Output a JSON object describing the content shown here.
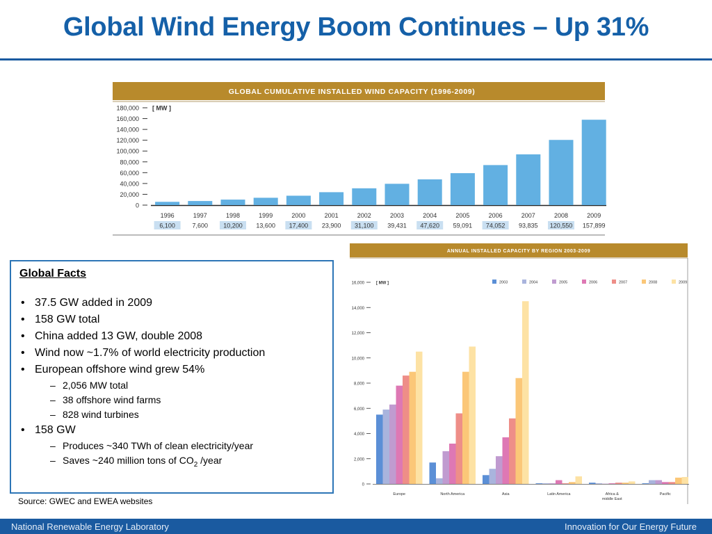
{
  "title": "Global Wind Energy Boom Continues – Up 31%",
  "colors": {
    "title": "#1560a8",
    "band": "#b88a2c",
    "bar": "#62b0e2",
    "highlight": "#c9dff1",
    "footer": "#1a5aa0",
    "box_border": "#2c75b6"
  },
  "facts": {
    "heading": "Global Facts",
    "bullets": [
      {
        "text": "37.5 GW added in 2009",
        "sub": []
      },
      {
        "text": "158 GW total",
        "sub": []
      },
      {
        "text": "China added 13 GW, double 2008",
        "sub": []
      },
      {
        "text": "Wind now ~1.7% of world electricity production",
        "sub": []
      },
      {
        "text": "European offshore wind grew 54%",
        "sub": [
          "2,056 MW total",
          "38 offshore wind farms",
          "828 wind turbines"
        ]
      },
      {
        "text": "158 GW",
        "sub": [
          "Produces ~340 TWh of clean electricity/year",
          "Saves ~240 million tons of CO2 /year"
        ]
      }
    ]
  },
  "source": "Source: GWEC and EWEA websites",
  "footer": {
    "left": "National Renewable Energy Laboratory",
    "right": "Innovation for Our Energy Future"
  },
  "chart_data": [
    {
      "type": "bar",
      "title": "GLOBAL CUMULATIVE INSTALLED WIND CAPACITY (1996-2009)",
      "unit_label": "[ MW ]",
      "categories": [
        "1996",
        "1997",
        "1998",
        "1999",
        "2000",
        "2001",
        "2002",
        "2003",
        "2004",
        "2005",
        "2006",
        "2007",
        "2008",
        "2009"
      ],
      "values": [
        6100,
        7600,
        10200,
        13600,
        17400,
        23900,
        31100,
        39431,
        47620,
        59091,
        74052,
        93835,
        120550,
        157899
      ],
      "value_labels": [
        "6,100",
        "7,600",
        "10,200",
        "13,600",
        "17,400",
        "23,900",
        "31,100",
        "39,431",
        "47,620",
        "59,091",
        "74,052",
        "93,835",
        "120,550",
        "157,899"
      ],
      "highlighted_labels": [
        "1996",
        "1998",
        "2000",
        "2002",
        "2004",
        "2006",
        "2008"
      ],
      "ylim": [
        0,
        180000
      ],
      "yticks": [
        0,
        20000,
        40000,
        60000,
        80000,
        100000,
        120000,
        140000,
        160000,
        180000
      ],
      "ytick_labels": [
        "0",
        "20,000",
        "40,000",
        "60,000",
        "80,000",
        "100,000",
        "120,000",
        "140,000",
        "160,000",
        "180,000"
      ]
    },
    {
      "type": "bar",
      "title": "ANNUAL INSTALLED CAPACITY BY REGION 2003-2009",
      "unit_label": "[ MW ]",
      "categories": [
        "Europe",
        "North America",
        "Asia",
        "Latin America",
        "Africa & middle East",
        "Pacific"
      ],
      "series": [
        {
          "name": "2003",
          "color": "#5b8fd6",
          "values": [
            5500,
            1700,
            700,
            50,
            100,
            50
          ]
        },
        {
          "name": "2004",
          "color": "#a9b4dd",
          "values": [
            5900,
            450,
            1200,
            50,
            50,
            300
          ]
        },
        {
          "name": "2005",
          "color": "#c09bd0",
          "values": [
            6300,
            2600,
            2200,
            50,
            20,
            300
          ]
        },
        {
          "name": "2006",
          "color": "#de78b4",
          "values": [
            7800,
            3200,
            3700,
            300,
            50,
            150
          ]
        },
        {
          "name": "2007",
          "color": "#ee8e88",
          "values": [
            8600,
            5600,
            5200,
            50,
            100,
            150
          ]
        },
        {
          "name": "2008",
          "color": "#fbc778",
          "values": [
            8900,
            8900,
            8400,
            150,
            100,
            500
          ]
        },
        {
          "name": "2009",
          "color": "#fde2a4",
          "values": [
            10500,
            10900,
            14500,
            600,
            200,
            550
          ]
        }
      ],
      "ylim": [
        0,
        16000
      ],
      "yticks": [
        0,
        2000,
        4000,
        6000,
        8000,
        10000,
        12000,
        14000,
        16000
      ],
      "ytick_labels": [
        "0",
        "2,000",
        "4,000",
        "6,000",
        "8,000",
        "10,000",
        "12,000",
        "14,000",
        "16,000"
      ]
    }
  ]
}
